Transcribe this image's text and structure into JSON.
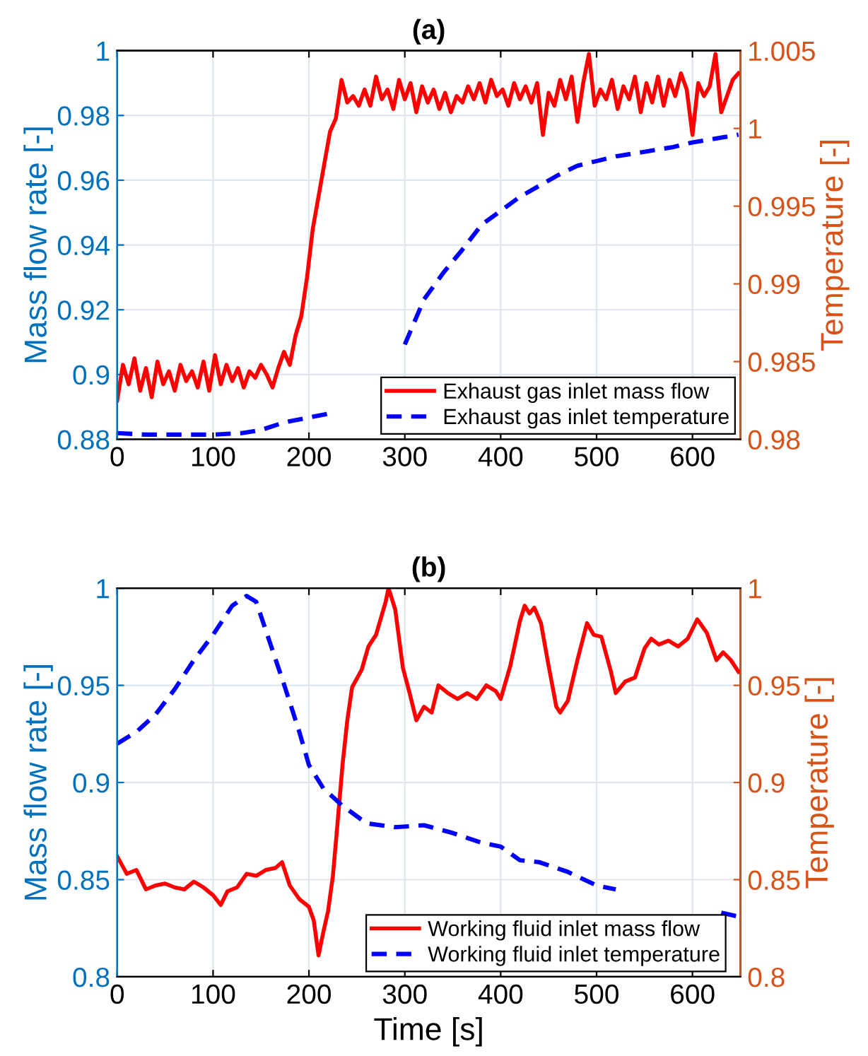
{
  "chart_data": [
    {
      "type": "line",
      "title": "(a)",
      "ylabel": "Mass flow rate [-]",
      "y2label": "Temperature [-]",
      "xlim": [
        0,
        650
      ],
      "xticks": [
        0,
        100,
        200,
        300,
        400,
        500,
        600
      ],
      "ylim": [
        0.88,
        1
      ],
      "yticks": [
        0.88,
        0.9,
        0.92,
        0.94,
        0.96,
        0.98,
        1
      ],
      "y2lim": [
        0.98,
        1.005
      ],
      "y2ticks": [
        0.98,
        0.985,
        0.99,
        0.995,
        1,
        1.005
      ],
      "grid": true,
      "legend": "bottom right",
      "series": [
        {
          "name": "Exhaust gas inlet mass flow",
          "color": "#ff0000",
          "axis": "y",
          "line_style": "solid",
          "x": [
            0,
            6,
            12,
            18,
            24,
            30,
            36,
            42,
            48,
            54,
            60,
            66,
            72,
            78,
            84,
            90,
            96,
            102,
            108,
            114,
            120,
            126,
            132,
            138,
            144,
            150,
            156,
            162,
            168,
            174,
            180,
            186,
            192,
            198,
            204,
            210,
            216,
            222,
            228,
            234,
            240,
            246,
            252,
            258,
            264,
            270,
            276,
            282,
            288,
            294,
            300,
            306,
            312,
            318,
            324,
            330,
            336,
            342,
            348,
            354,
            360,
            366,
            372,
            378,
            384,
            390,
            396,
            402,
            408,
            414,
            420,
            426,
            432,
            438,
            444,
            450,
            456,
            462,
            468,
            474,
            480,
            486,
            492,
            498,
            504,
            510,
            516,
            522,
            528,
            534,
            540,
            546,
            552,
            558,
            564,
            570,
            576,
            582,
            588,
            594,
            600,
            606,
            612,
            618,
            624,
            630,
            636,
            642,
            648
          ],
          "values": [
            0.892,
            0.903,
            0.897,
            0.905,
            0.895,
            0.902,
            0.893,
            0.904,
            0.897,
            0.901,
            0.895,
            0.903,
            0.898,
            0.901,
            0.896,
            0.904,
            0.895,
            0.906,
            0.897,
            0.903,
            0.898,
            0.902,
            0.896,
            0.901,
            0.899,
            0.903,
            0.9,
            0.896,
            0.902,
            0.907,
            0.903,
            0.912,
            0.918,
            0.93,
            0.945,
            0.955,
            0.965,
            0.975,
            0.979,
            0.991,
            0.984,
            0.986,
            0.983,
            0.988,
            0.983,
            0.992,
            0.985,
            0.988,
            0.982,
            0.991,
            0.985,
            0.99,
            0.981,
            0.989,
            0.984,
            0.988,
            0.982,
            0.987,
            0.981,
            0.986,
            0.984,
            0.989,
            0.985,
            0.99,
            0.984,
            0.991,
            0.986,
            0.988,
            0.983,
            0.99,
            0.985,
            0.989,
            0.984,
            0.99,
            0.974,
            0.987,
            0.983,
            0.991,
            0.985,
            0.992,
            0.978,
            0.99,
            0.999,
            0.983,
            0.988,
            0.985,
            0.991,
            0.982,
            0.989,
            0.985,
            0.992,
            0.981,
            0.99,
            0.984,
            0.992,
            0.983,
            0.991,
            0.986,
            0.993,
            0.988,
            0.974,
            0.99,
            0.986,
            0.989,
            0.999,
            0.981,
            0.986,
            0.991,
            0.993
          ]
        },
        {
          "name": "Exhaust gas inlet temperature",
          "color": "#0000ff",
          "axis": "y2",
          "line_style": "dashed",
          "x": [
            0,
            30,
            100,
            130,
            150,
            175,
            200,
            225,
            265,
            300,
            320,
            340,
            360,
            380,
            400,
            420,
            440,
            460,
            480,
            500,
            520,
            550,
            580,
            600,
            620,
            648
          ],
          "values": [
            0.9804,
            0.9803,
            0.9803,
            0.9804,
            0.9806,
            0.9811,
            0.9814,
            0.9817,
            null,
            0.9861,
            0.989,
            0.9907,
            0.9922,
            0.9938,
            0.9947,
            0.9956,
            0.9963,
            0.997,
            0.9976,
            0.9979,
            0.9982,
            0.9985,
            0.9988,
            0.9991,
            0.9993,
            0.9996
          ]
        }
      ]
    },
    {
      "type": "line",
      "title": "(b)",
      "xlabel": "Time [s]",
      "ylabel": "Mass flow rate [-]",
      "y2label": "Temperature [-]",
      "xlim": [
        0,
        650
      ],
      "xticks": [
        0,
        100,
        200,
        300,
        400,
        500,
        600
      ],
      "ylim": [
        0.8,
        1
      ],
      "yticks": [
        0.8,
        0.85,
        0.9,
        0.95,
        1
      ],
      "y2lim": [
        0.8,
        1
      ],
      "y2ticks": [
        0.8,
        0.85,
        0.9,
        0.95,
        1
      ],
      "grid": true,
      "legend": "bottom right",
      "series": [
        {
          "name": "Working fluid inlet mass flow",
          "color": "#ff0000",
          "axis": "y",
          "line_style": "solid",
          "x": [
            0,
            10,
            20,
            30,
            40,
            50,
            60,
            70,
            80,
            90,
            100,
            108,
            115,
            125,
            135,
            145,
            155,
            165,
            172,
            180,
            190,
            200,
            205,
            210,
            215,
            220,
            225,
            230,
            235,
            240,
            245,
            255,
            262,
            270,
            280,
            283,
            290,
            298,
            305,
            312,
            320,
            328,
            335,
            345,
            355,
            365,
            375,
            385,
            395,
            400,
            410,
            420,
            425,
            430,
            435,
            442,
            450,
            458,
            462,
            470,
            480,
            490,
            497,
            505,
            515,
            520,
            530,
            540,
            550,
            557,
            565,
            575,
            585,
            595,
            605,
            615,
            625,
            632,
            640,
            648
          ],
          "values": [
            0.862,
            0.853,
            0.855,
            0.845,
            0.847,
            0.848,
            0.846,
            0.845,
            0.849,
            0.846,
            0.842,
            0.837,
            0.844,
            0.846,
            0.853,
            0.852,
            0.855,
            0.856,
            0.859,
            0.847,
            0.84,
            0.836,
            0.829,
            0.811,
            0.823,
            0.834,
            0.852,
            0.88,
            0.909,
            0.932,
            0.949,
            0.958,
            0.97,
            0.976,
            0.993,
            1.0,
            0.989,
            0.959,
            0.946,
            0.932,
            0.939,
            0.936,
            0.95,
            0.946,
            0.943,
            0.946,
            0.943,
            0.95,
            0.947,
            0.943,
            0.96,
            0.983,
            0.991,
            0.987,
            0.99,
            0.982,
            0.96,
            0.939,
            0.936,
            0.942,
            0.963,
            0.982,
            0.976,
            0.975,
            0.957,
            0.946,
            0.952,
            0.954,
            0.969,
            0.974,
            0.971,
            0.973,
            0.97,
            0.974,
            0.984,
            0.977,
            0.963,
            0.967,
            0.963,
            0.957
          ]
        },
        {
          "name": "Working fluid inlet temperature",
          "color": "#0000ff",
          "axis": "y2",
          "line_style": "dashed",
          "x": [
            0,
            20,
            40,
            60,
            80,
            100,
            120,
            135,
            145,
            160,
            175,
            190,
            200,
            215,
            235,
            260,
            290,
            320,
            350,
            380,
            400,
            420,
            440,
            470,
            500,
            520,
            575,
            630,
            648
          ],
          "values": [
            0.92,
            0.926,
            0.935,
            0.948,
            0.963,
            0.976,
            0.991,
            0.996,
            0.993,
            0.971,
            0.949,
            0.926,
            0.909,
            0.897,
            0.888,
            0.879,
            0.877,
            0.878,
            0.874,
            0.869,
            0.867,
            0.86,
            0.859,
            0.854,
            0.847,
            0.845,
            null,
            0.833,
            0.831
          ]
        }
      ]
    }
  ]
}
